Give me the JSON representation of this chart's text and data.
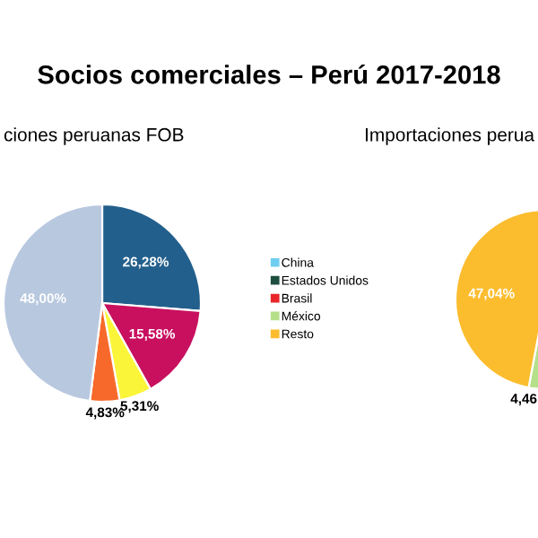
{
  "chart_data": [
    {
      "type": "pie",
      "title": "Socios comerciales – Perú 2017-2018",
      "subtitle": "ciones peruanas FOB",
      "categories": [
        null,
        null,
        null,
        null,
        null
      ],
      "values": [
        26.28,
        15.58,
        5.31,
        4.83,
        48.0
      ],
      "colors": [
        "#235f8c",
        "#c8105f",
        "#fbf53a",
        "#f7692a",
        "#b8c8df"
      ],
      "value_labels": [
        "26,28%",
        "15,58%",
        "5,31%",
        "4,83%",
        "48,00%"
      ]
    },
    {
      "type": "pie",
      "subtitle": "Importaciones perua",
      "categories": [
        "China",
        "Estados Unidos",
        "Brasil",
        "México",
        "Resto"
      ],
      "values": [
        null,
        null,
        null,
        4.46,
        47.04
      ],
      "colors": [
        "#6fcdf0",
        "#1d4e3f",
        "#e8262a",
        "#b5e08a",
        "#fbbd2e"
      ],
      "value_labels": [
        null,
        null,
        null,
        "4,46",
        "47,04%"
      ],
      "legend": "left"
    }
  ]
}
